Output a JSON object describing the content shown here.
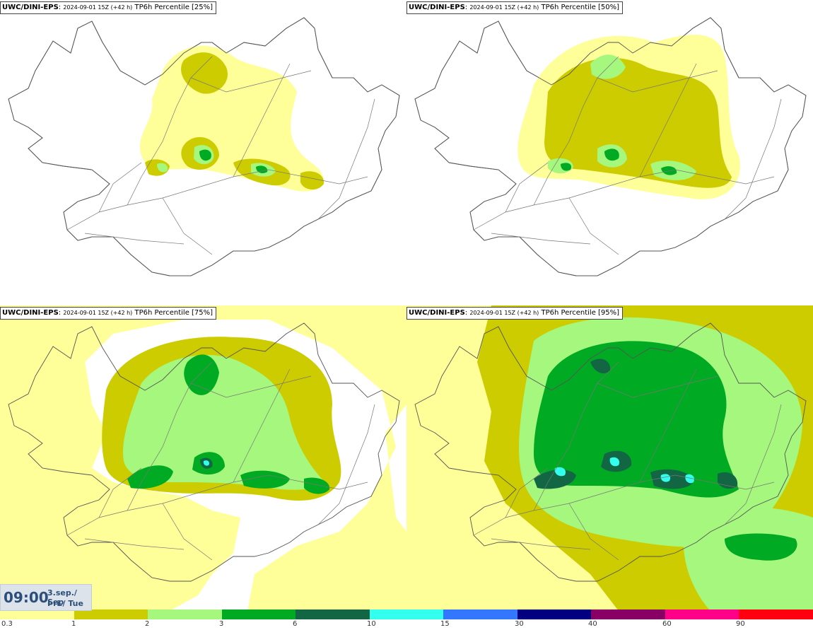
{
  "panels": [
    {
      "source": "UWC/DINI-EPS",
      "run": "2024-09-01 15Z (+42 h)",
      "field": "TP6h Percentile [25%]",
      "percentile": 25
    },
    {
      "source": "UWC/DINI-EPS",
      "run": "2024-09-01 15Z (+42 h)",
      "field": "TP6h Percentile [50%]",
      "percentile": 50
    },
    {
      "source": "UWC/DINI-EPS",
      "run": "2024-09-01 15Z (+42 h)",
      "field": "TP6h Percentile [75%]",
      "percentile": 75
    },
    {
      "source": "UWC/DINI-EPS",
      "run": "2024-09-01 15Z (+42 h)",
      "field": "TP6h Percentile [95%]",
      "percentile": 95
    }
  ],
  "valid_time": {
    "clock": "09:00",
    "date": "3.sep./ Sep",
    "weekday": "Þri./ Tue"
  },
  "legend": {
    "labels": [
      "0.3",
      "1",
      "2",
      "3",
      "6",
      "10",
      "15",
      "30",
      "40",
      "60",
      "90"
    ],
    "colors": [
      "#ffff99",
      "#cccc00",
      "#a6f77e",
      "#00aa22",
      "#126644",
      "#33ffee",
      "#3377ff",
      "#000080",
      "#880066",
      "#ff0088",
      "#ff0011"
    ]
  },
  "palette": {
    "white": "#ffffff",
    "coast": "#555555"
  }
}
